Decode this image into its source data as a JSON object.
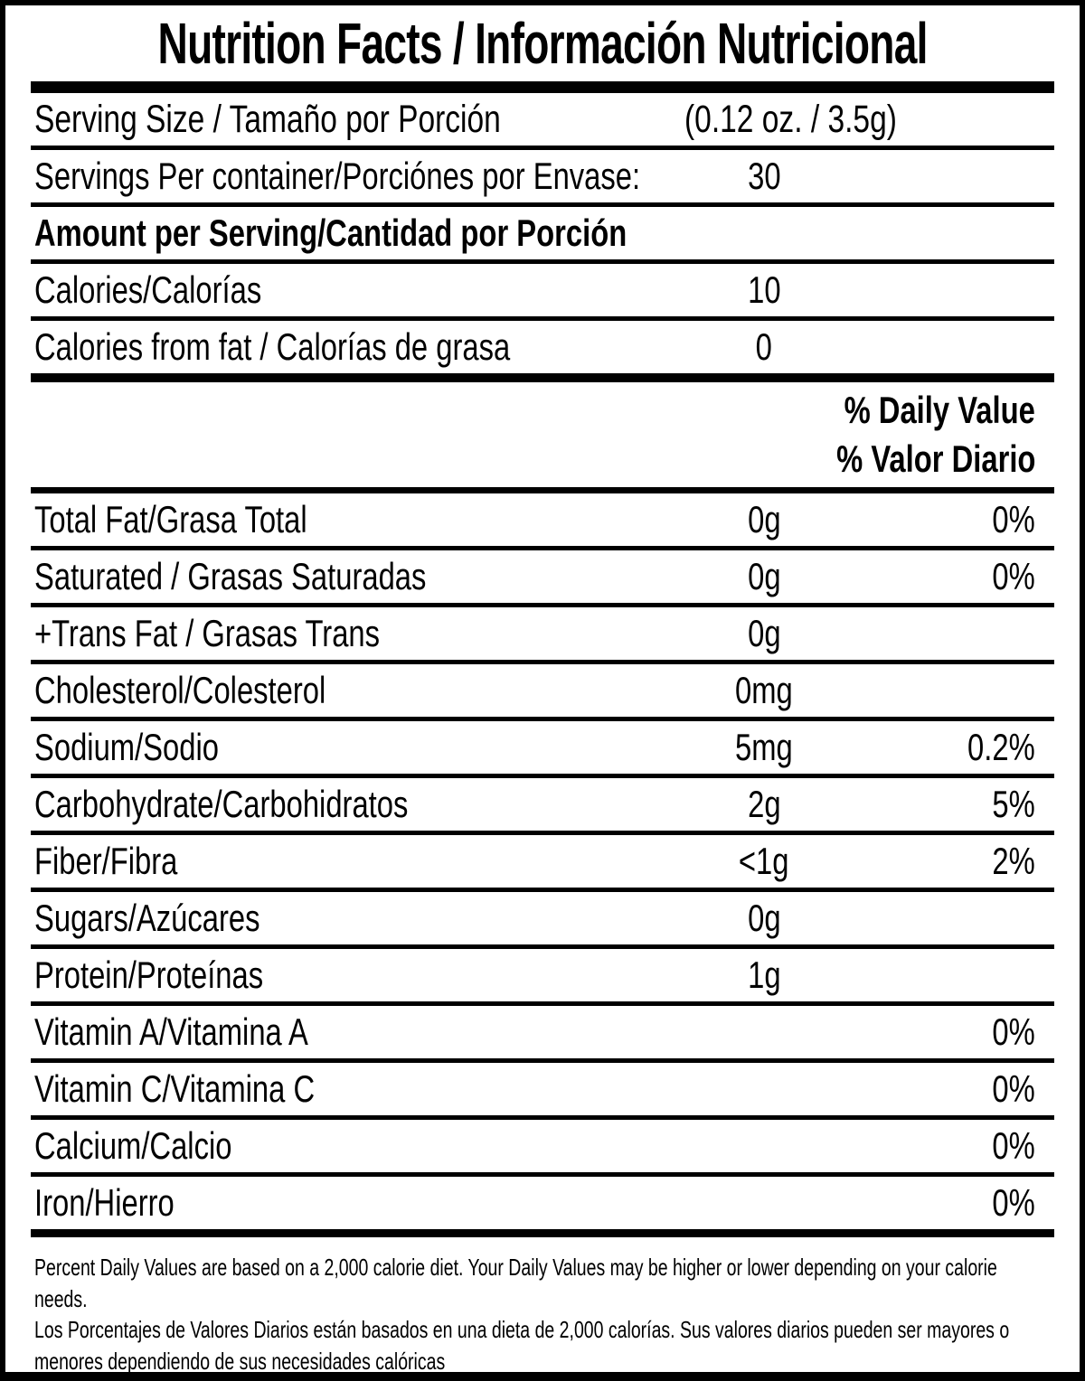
{
  "label": {
    "title": "Nutrition Facts / Información Nutricional",
    "serving_size": {
      "label": "Serving Size / Tamaño por Porción",
      "value": "(0.12 oz. / 3.5g)"
    },
    "servings_per_container": {
      "label": "Servings Per container/Porciónes por Envase:",
      "value": "30"
    },
    "amount_per_serving_header": "Amount per Serving/Cantidad por Porción",
    "calories": {
      "label": "Calories/Calorías",
      "value": "10"
    },
    "calories_from_fat": {
      "label": "Calories from fat / Calorías de grasa",
      "value": "0"
    },
    "daily_value_header": {
      "line1": "% Daily Value",
      "line2": "% Valor Diario"
    },
    "nutrients": [
      {
        "label": "Total Fat/Grasa Total",
        "amount": "0g",
        "dv": "0%"
      },
      {
        "label": "Saturated / Grasas Saturadas",
        "amount": "0g",
        "dv": "0%"
      },
      {
        "label": "+Trans Fat / Grasas Trans",
        "amount": "0g",
        "dv": ""
      },
      {
        "label": "Cholesterol/Colesterol",
        "amount": "0mg",
        "dv": ""
      },
      {
        "label": "Sodium/Sodio",
        "amount": "5mg",
        "dv": "0.2%"
      },
      {
        "label": "Carbohydrate/Carbohidratos",
        "amount": "2g",
        "dv": "5%"
      },
      {
        "label": "Fiber/Fibra",
        "amount": "<1g",
        "dv": "2%"
      },
      {
        "label": "Sugars/Azúcares",
        "amount": "0g",
        "dv": ""
      },
      {
        "label": "Protein/Proteínas",
        "amount": "1g",
        "dv": ""
      },
      {
        "label": "Vitamin A/Vitamina A",
        "amount": "",
        "dv": "0%"
      },
      {
        "label": "Vitamin C/Vitamina C",
        "amount": "",
        "dv": "0%"
      },
      {
        "label": "Calcium/Calcio",
        "amount": "",
        "dv": "0%"
      },
      {
        "label": "Iron/Hierro",
        "amount": "",
        "dv": "0%"
      }
    ],
    "footnote_en": "Percent Daily Values are based on a 2,000 calorie diet. Your Daily Values may be higher or lower depending on your calorie needs.",
    "footnote_es": "Los Porcentajes de Valores Diarios están basados en una dieta de 2,000 calorías. Sus valores diarios pueden ser mayores o menores dependiendo de sus necesidades calóricas",
    "colors": {
      "text": "#000000",
      "background": "#ffffff",
      "border": "#000000"
    }
  }
}
